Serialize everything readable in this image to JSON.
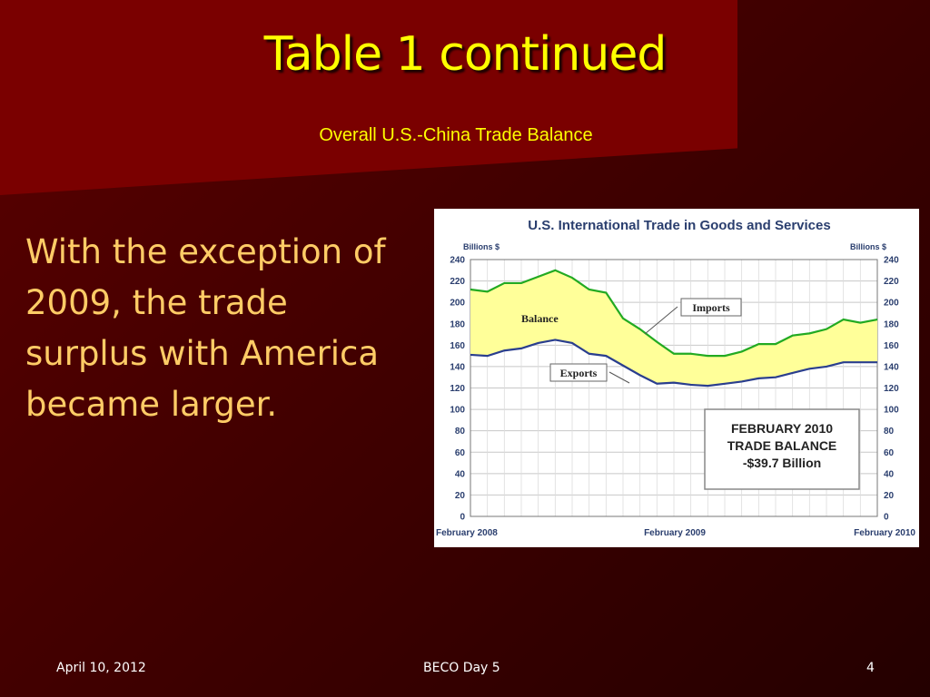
{
  "slide": {
    "title": "Table 1 continued",
    "subtitle": "Overall U.S.-China Trade Balance",
    "body": "With the exception of 2009, the trade surplus with America became larger."
  },
  "footer": {
    "date": "April 10, 2012",
    "center": "BECO Day 5",
    "page": "4"
  },
  "chart_data": {
    "type": "area",
    "title": "U.S. International Trade in Goods and Services",
    "ylabel_left": "Billions $",
    "ylabel_right": "Billions $",
    "ylim": [
      0,
      240
    ],
    "yticks": [
      0,
      20,
      40,
      60,
      80,
      100,
      120,
      140,
      160,
      180,
      200,
      220,
      240
    ],
    "x_labels": [
      "February 2008",
      "February 2009",
      "February 2010"
    ],
    "grid": true,
    "series": [
      {
        "name": "Imports",
        "values": [
          212,
          210,
          218,
          218,
          224,
          230,
          223,
          212,
          209,
          185,
          175,
          163,
          152,
          152,
          150,
          150,
          154,
          161,
          161,
          169,
          171,
          175,
          184,
          181,
          184
        ]
      },
      {
        "name": "Exports",
        "values": [
          151,
          150,
          155,
          157,
          162,
          165,
          162,
          152,
          150,
          141,
          132,
          124,
          125,
          123,
          122,
          124,
          126,
          129,
          130,
          134,
          138,
          140,
          144,
          144,
          144
        ]
      }
    ],
    "fill_label": "Balance",
    "annotation_box": [
      "FEBRUARY 2010",
      "TRADE BALANCE",
      "-$39.7 Billion"
    ],
    "colors": {
      "imports": "#22aa22",
      "exports": "#2a3e8e",
      "balance": "#ffff99"
    }
  }
}
